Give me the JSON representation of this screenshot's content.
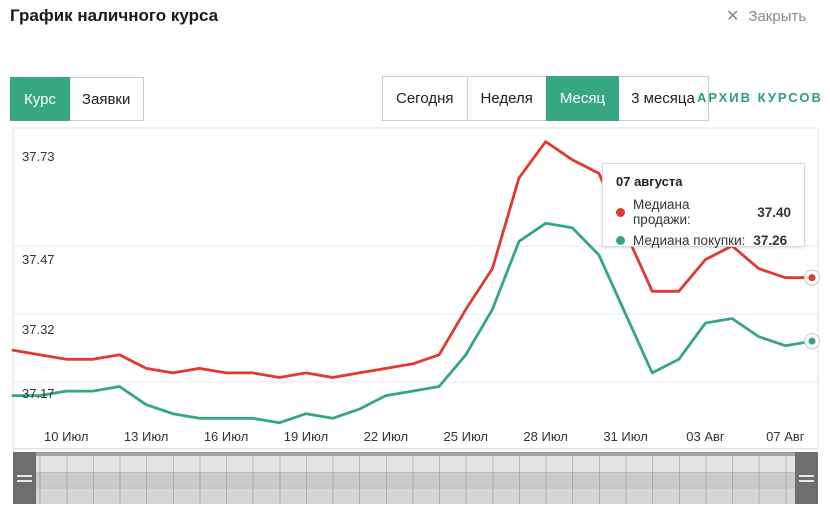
{
  "header": {
    "title": "График наличного курса",
    "close_label": "Закрыть"
  },
  "view_toggle": {
    "options": [
      {
        "label": "Курс",
        "selected": true
      },
      {
        "label": "Заявки",
        "selected": false
      }
    ]
  },
  "period_toggle": {
    "options": [
      {
        "label": "Сегодня",
        "selected": false
      },
      {
        "label": "Неделя",
        "selected": false
      },
      {
        "label": "Месяц",
        "selected": true
      },
      {
        "label": "3 месяца",
        "selected": false
      }
    ]
  },
  "archive_link": {
    "label": "АРХИВ КУРСОВ"
  },
  "tooltip": {
    "title": "07 августа",
    "rows": [
      {
        "label": "Медиана продажи:",
        "value": "37.40",
        "color": "#e0392e"
      },
      {
        "label": "Медиана покупки:",
        "value": "37.26",
        "color": "#35a77f"
      }
    ]
  },
  "colors": {
    "accent_green": "#36a782",
    "sell_red": "#e0392e",
    "buy_green": "#35a77f",
    "archive_green": "#2f9e78",
    "grid": "#e9e9e9",
    "plot_border": "#e0e0e0"
  },
  "chart_data": {
    "type": "line",
    "title": "График наличного курса",
    "xlabel": "",
    "ylabel": "",
    "ylim": [
      37.03,
      37.76
    ],
    "grid": "horizontal",
    "legend_position": "tooltip",
    "y_ticks": [
      "37.73",
      "37.47",
      "37.32",
      "37.17"
    ],
    "x_ticks": [
      {
        "label": "10 Июл",
        "i": 2
      },
      {
        "label": "13 Июл",
        "i": 5
      },
      {
        "label": "16 Июл",
        "i": 8
      },
      {
        "label": "19 Июл",
        "i": 11
      },
      {
        "label": "22 Июл",
        "i": 14
      },
      {
        "label": "25 Июл",
        "i": 17
      },
      {
        "label": "28 Июл",
        "i": 20
      },
      {
        "label": "31 Июл",
        "i": 23
      },
      {
        "label": "03 Авг",
        "i": 26
      },
      {
        "label": "07 Авг",
        "i": 29
      }
    ],
    "x_range": "08 Июл — 07 Авг, ежедневные точки",
    "series": [
      {
        "name": "Медиана продажи",
        "color": "#e0392e",
        "values": [
          37.24,
          37.23,
          37.22,
          37.22,
          37.23,
          37.2,
          37.19,
          37.2,
          37.19,
          37.19,
          37.18,
          37.19,
          37.18,
          37.19,
          37.2,
          37.21,
          37.23,
          37.33,
          37.42,
          37.62,
          37.7,
          37.66,
          37.63,
          37.5,
          37.37,
          37.37,
          37.44,
          37.47,
          37.42,
          37.4,
          37.4
        ]
      },
      {
        "name": "Медиана покупки",
        "color": "#35a77f",
        "values": [
          37.14,
          37.14,
          37.15,
          37.15,
          37.16,
          37.12,
          37.1,
          37.09,
          37.09,
          37.09,
          37.08,
          37.1,
          37.09,
          37.11,
          37.14,
          37.15,
          37.16,
          37.23,
          37.33,
          37.48,
          37.52,
          37.51,
          37.45,
          37.32,
          37.19,
          37.22,
          37.3,
          37.31,
          37.27,
          37.25,
          37.26
        ]
      }
    ]
  }
}
